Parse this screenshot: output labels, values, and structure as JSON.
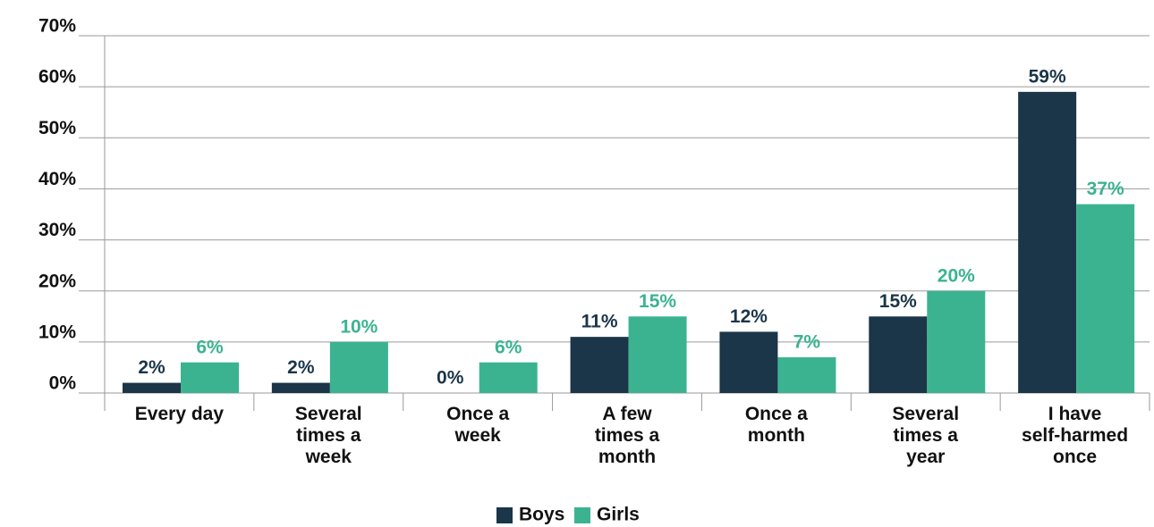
{
  "chart_data": {
    "type": "bar",
    "categories": [
      "Every day",
      "Several\ntimes a\nweek",
      "Once a\nweek",
      "A few\ntimes a\nmonth",
      "Once a\nmonth",
      "Several\ntimes a\nyear",
      "I have\nself-harmed\nonce"
    ],
    "series": [
      {
        "name": "Boys",
        "color": "#1b3549",
        "values": [
          2,
          2,
          0,
          11,
          12,
          15,
          59
        ],
        "value_labels": [
          "2%",
          "2%",
          "0%",
          "11%",
          "12%",
          "15%",
          "59%"
        ]
      },
      {
        "name": "Girls",
        "color": "#3bb391",
        "values": [
          6,
          10,
          6,
          15,
          7,
          20,
          37
        ],
        "value_labels": [
          "6%",
          "10%",
          "6%",
          "15%",
          "7%",
          "20%",
          "37%"
        ]
      }
    ],
    "ylim": [
      0,
      70
    ],
    "yticks": [
      {
        "value": 0,
        "label": "0%"
      },
      {
        "value": 10,
        "label": "10%"
      },
      {
        "value": 20,
        "label": "20%"
      },
      {
        "value": 30,
        "label": "30%"
      },
      {
        "value": 40,
        "label": "40%"
      },
      {
        "value": 50,
        "label": "50%"
      },
      {
        "value": 60,
        "label": "60%"
      },
      {
        "value": 70,
        "label": "70%"
      }
    ],
    "grid": true,
    "legend": "bottom"
  }
}
